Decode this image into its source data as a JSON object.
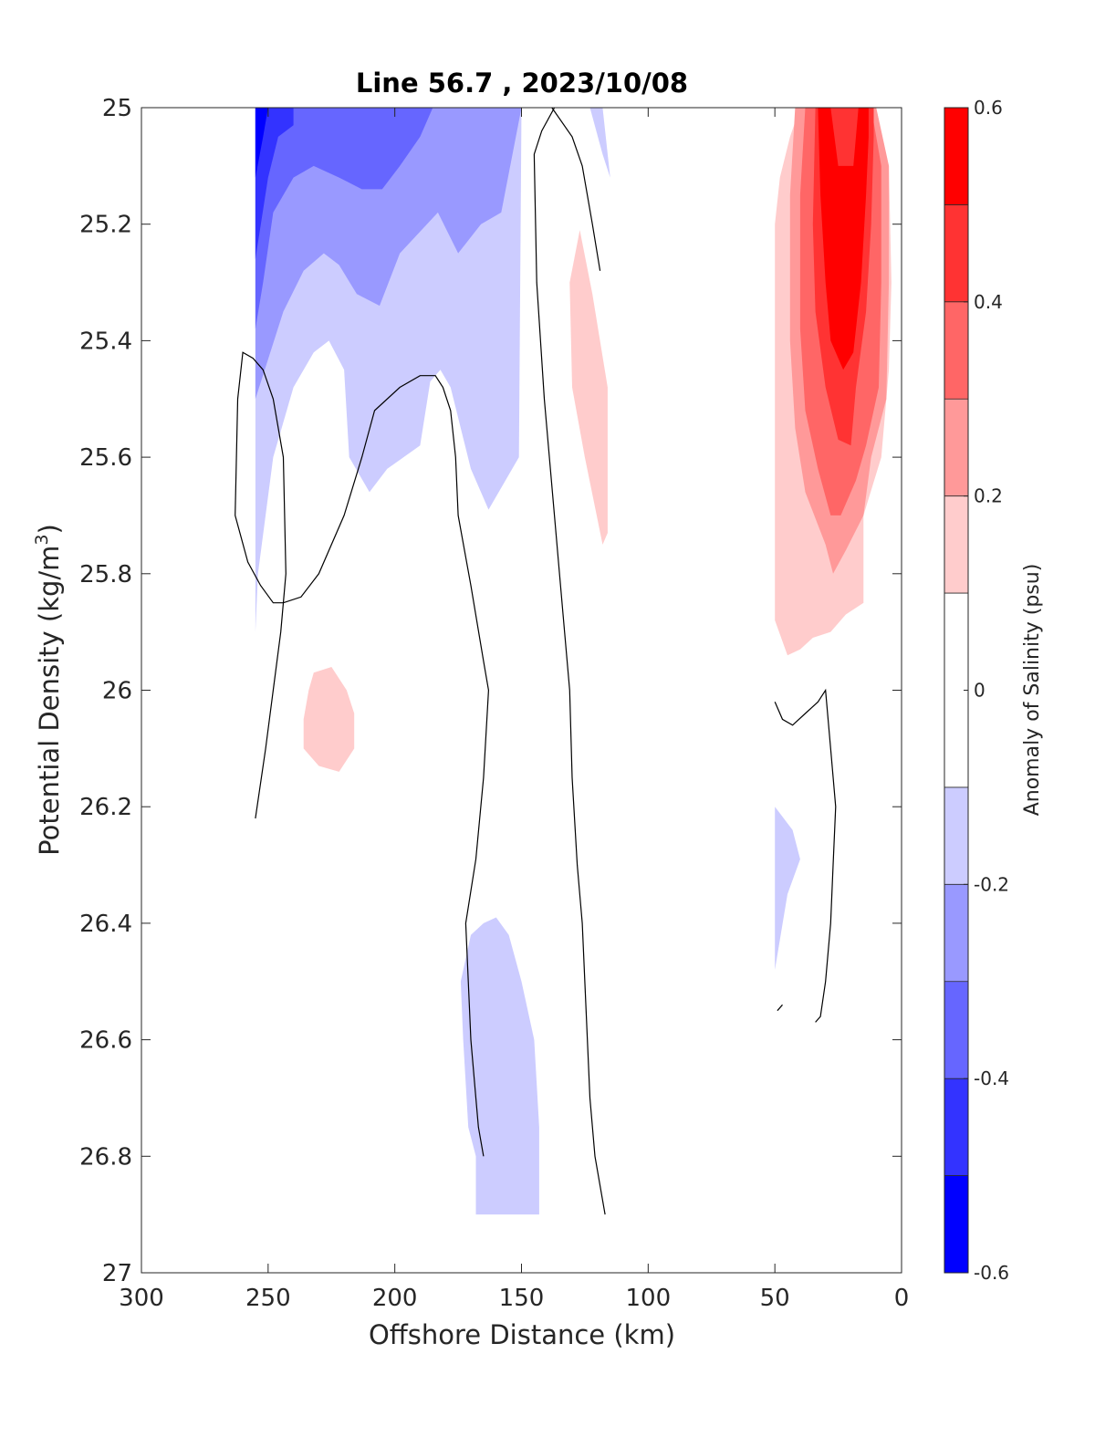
{
  "chart_data": {
    "type": "heatmap",
    "subtype": "filled-contour",
    "title": "Line 56.7 , 2023/10/08",
    "xlabel": "Offshore Distance (km)",
    "ylabel_main": "Potential Density (kg/m",
    "ylabel_sup": "3",
    "ylabel_tail": ")",
    "xlim": [
      300,
      0
    ],
    "ylim": [
      25,
      27
    ],
    "y_reversed": true,
    "x_reversed": true,
    "xticks": [
      300,
      250,
      200,
      150,
      100,
      50,
      0
    ],
    "yticks": [
      25,
      25.2,
      25.4,
      25.6,
      25.8,
      26,
      26.2,
      26.4,
      26.6,
      26.8,
      27
    ],
    "xtick_labels": [
      "300",
      "250",
      "200",
      "150",
      "100",
      "50",
      "0"
    ],
    "ytick_labels": [
      "25",
      "25.2",
      "25.4",
      "25.6",
      "25.8",
      "26",
      "26.2",
      "26.4",
      "26.6",
      "26.8",
      "27"
    ],
    "grid": false,
    "colorbar": {
      "label": "Anomaly of Salinity (psu)",
      "range": [
        -0.6,
        0.6
      ],
      "levels": [
        -0.6,
        -0.5,
        -0.4,
        -0.3,
        -0.2,
        -0.1,
        0.1,
        0.2,
        0.3,
        0.4,
        0.5,
        0.6
      ],
      "colors": [
        "#0000ff",
        "#3333ff",
        "#6666ff",
        "#9999ff",
        "#ccccff",
        "#ffffff",
        "#ffcccc",
        "#ff9999",
        "#ff6666",
        "#ff3333",
        "#ff0000"
      ],
      "tick_values": [
        -0.6,
        -0.4,
        -0.2,
        0,
        0.2,
        0.4,
        0.6
      ],
      "tick_labels": [
        "-0.6",
        "-0.4",
        "-0.2",
        "0",
        "0.2",
        "0.4",
        "0.6"
      ]
    },
    "regions": [
      {
        "name": "neg-0.1-offshore-top",
        "level": -0.1,
        "color": "#ccccff",
        "points": [
          [
            255,
            25
          ],
          [
            255,
            25.9
          ],
          [
            254,
            25.8
          ],
          [
            248,
            25.6
          ],
          [
            240,
            25.48
          ],
          [
            232,
            25.42
          ],
          [
            226,
            25.4
          ],
          [
            220,
            25.45
          ],
          [
            218,
            25.6
          ],
          [
            210,
            25.66
          ],
          [
            203,
            25.62
          ],
          [
            190,
            25.58
          ],
          [
            186,
            25.47
          ],
          [
            182,
            25.45
          ],
          [
            178,
            25.48
          ],
          [
            170,
            25.62
          ],
          [
            163,
            25.69
          ],
          [
            151,
            25.6
          ],
          [
            150,
            25
          ]
        ]
      },
      {
        "name": "neg-0.2-offshore-top",
        "level": -0.2,
        "color": "#9999ff",
        "points": [
          [
            255,
            25
          ],
          [
            255,
            25.5
          ],
          [
            244,
            25.35
          ],
          [
            236,
            25.28
          ],
          [
            228,
            25.25
          ],
          [
            222,
            25.27
          ],
          [
            215,
            25.32
          ],
          [
            206,
            25.34
          ],
          [
            198,
            25.25
          ],
          [
            183,
            25.18
          ],
          [
            175,
            25.25
          ],
          [
            166,
            25.2
          ],
          [
            158,
            25.18
          ],
          [
            150,
            25
          ]
        ]
      },
      {
        "name": "neg-0.3-offshore-top",
        "level": -0.3,
        "color": "#6666ff",
        "points": [
          [
            255,
            25
          ],
          [
            255,
            25.38
          ],
          [
            252,
            25.3
          ],
          [
            248,
            25.18
          ],
          [
            240,
            25.12
          ],
          [
            232,
            25.1
          ],
          [
            222,
            25.12
          ],
          [
            213,
            25.14
          ],
          [
            205,
            25.14
          ],
          [
            198,
            25.1
          ],
          [
            190,
            25.05
          ],
          [
            185,
            25
          ]
        ]
      },
      {
        "name": "neg-0.4-offshore-top",
        "level": -0.4,
        "color": "#3333ff",
        "points": [
          [
            255,
            25
          ],
          [
            255,
            25.26
          ],
          [
            250,
            25.12
          ],
          [
            246,
            25.05
          ],
          [
            240,
            25.03
          ],
          [
            240,
            25
          ],
          [
            255,
            25
          ]
        ]
      },
      {
        "name": "neg-0.5-offshore-top",
        "level": -0.5,
        "color": "#0000ff",
        "points": [
          [
            255,
            25
          ],
          [
            255,
            25.12
          ],
          [
            252,
            25.05
          ],
          [
            250,
            25
          ]
        ]
      },
      {
        "name": "neg-0.1-near-125",
        "level": -0.1,
        "color": "#ccccff",
        "points": [
          [
            123,
            25
          ],
          [
            118,
            25
          ],
          [
            115,
            25.12
          ],
          [
            118,
            25.08
          ]
        ]
      },
      {
        "name": "pos-0.1-near-130",
        "level": 0.1,
        "color": "#ffcccc",
        "points": [
          [
            127,
            25.21
          ],
          [
            131,
            25.3
          ],
          [
            130,
            25.48
          ],
          [
            125,
            25.6
          ],
          [
            118,
            25.75
          ],
          [
            116,
            25.73
          ],
          [
            116,
            25.48
          ],
          [
            122,
            25.32
          ]
        ]
      },
      {
        "name": "pos-0.1-blob-225",
        "level": 0.1,
        "color": "#ffcccc",
        "points": [
          [
            232,
            25.97
          ],
          [
            225,
            25.96
          ],
          [
            219,
            26
          ],
          [
            216,
            26.04
          ],
          [
            216,
            26.1
          ],
          [
            222,
            26.14
          ],
          [
            230,
            26.13
          ],
          [
            236,
            26.1
          ],
          [
            236,
            26.05
          ],
          [
            234,
            26.0
          ]
        ]
      },
      {
        "name": "neg-0.1-deep-150",
        "level": -0.1,
        "color": "#ccccff",
        "points": [
          [
            165,
            26.4
          ],
          [
            170,
            26.42
          ],
          [
            174,
            26.5
          ],
          [
            173,
            26.6
          ],
          [
            171,
            26.75
          ],
          [
            168,
            26.8
          ],
          [
            168,
            26.9
          ],
          [
            143,
            26.9
          ],
          [
            143,
            26.75
          ],
          [
            145,
            26.6
          ],
          [
            150,
            26.5
          ],
          [
            155,
            26.42
          ],
          [
            160,
            26.39
          ]
        ]
      },
      {
        "name": "neg-0.1-near-45",
        "level": -0.1,
        "color": "#ccccff",
        "points": [
          [
            50,
            26.2
          ],
          [
            50,
            26.48
          ],
          [
            45,
            26.35
          ],
          [
            40,
            26.29
          ],
          [
            43,
            26.24
          ]
        ]
      },
      {
        "name": "pos-0.1-coastal",
        "level": 0.1,
        "color": "#ffcccc",
        "points": [
          [
            50,
            25.2
          ],
          [
            50,
            25.88
          ],
          [
            45,
            25.94
          ],
          [
            40,
            25.93
          ],
          [
            35,
            25.91
          ],
          [
            28,
            25.9
          ],
          [
            22,
            25.87
          ],
          [
            15,
            25.85
          ],
          [
            15,
            25.7
          ],
          [
            8,
            25.6
          ],
          [
            5,
            25.45
          ],
          [
            4,
            25.3
          ],
          [
            5,
            25.1
          ],
          [
            10,
            25
          ],
          [
            40,
            25
          ],
          [
            44,
            25.05
          ],
          [
            48,
            25.12
          ]
        ]
      },
      {
        "name": "pos-0.2-coastal",
        "level": 0.2,
        "color": "#ff9999",
        "points": [
          [
            42,
            25
          ],
          [
            44,
            25.15
          ],
          [
            44,
            25.4
          ],
          [
            42,
            25.55
          ],
          [
            38,
            25.66
          ],
          [
            30,
            25.75
          ],
          [
            27,
            25.8
          ],
          [
            22,
            25.76
          ],
          [
            15,
            25.7
          ],
          [
            12,
            25.6
          ],
          [
            6,
            25.5
          ],
          [
            5,
            25.3
          ],
          [
            5,
            25.1
          ],
          [
            10,
            25
          ]
        ]
      },
      {
        "name": "pos-0.3-coastal",
        "level": 0.3,
        "color": "#ff6666",
        "points": [
          [
            38,
            25
          ],
          [
            40,
            25.15
          ],
          [
            40,
            25.38
          ],
          [
            38,
            25.52
          ],
          [
            33,
            25.62
          ],
          [
            28,
            25.7
          ],
          [
            24,
            25.7
          ],
          [
            18,
            25.64
          ],
          [
            14,
            25.58
          ],
          [
            9,
            25.48
          ],
          [
            8,
            25.3
          ],
          [
            8,
            25.1
          ],
          [
            12,
            25
          ]
        ]
      },
      {
        "name": "pos-0.4-coastal",
        "level": 0.4,
        "color": "#ff3333",
        "points": [
          [
            34,
            25
          ],
          [
            35,
            25.2
          ],
          [
            34,
            25.35
          ],
          [
            30,
            25.48
          ],
          [
            25,
            25.57
          ],
          [
            20,
            25.58
          ],
          [
            18,
            25.48
          ],
          [
            14,
            25.35
          ],
          [
            12,
            25.2
          ],
          [
            11,
            25.05
          ],
          [
            11,
            25
          ]
        ]
      },
      {
        "name": "pos-0.5-coastal",
        "level": 0.5,
        "color": "#ff0000",
        "points": [
          [
            33,
            25
          ],
          [
            32,
            25.15
          ],
          [
            30,
            25.3
          ],
          [
            28,
            25.4
          ],
          [
            23,
            25.45
          ],
          [
            19,
            25.42
          ],
          [
            16,
            25.3
          ],
          [
            14,
            25.15
          ],
          [
            13,
            25.05
          ],
          [
            13,
            25
          ],
          [
            17,
            25
          ],
          [
            19,
            25.1
          ],
          [
            25,
            25.1
          ],
          [
            28,
            25
          ]
        ]
      }
    ],
    "contours": [
      {
        "name": "contour-loop-offshore",
        "level": 0,
        "points": [
          [
            255,
            26.22
          ],
          [
            251,
            26.1
          ],
          [
            248,
            26
          ],
          [
            245,
            25.9
          ],
          [
            243,
            25.8
          ],
          [
            244,
            25.6
          ],
          [
            248,
            25.5
          ],
          [
            252,
            25.45
          ],
          [
            256,
            25.43
          ],
          [
            260,
            25.42
          ],
          [
            262,
            25.5
          ],
          [
            263,
            25.7
          ],
          [
            258,
            25.78
          ],
          [
            253,
            25.82
          ],
          [
            248,
            25.85
          ],
          [
            244,
            25.85
          ],
          [
            237,
            25.84
          ],
          [
            230,
            25.8
          ],
          [
            220,
            25.7
          ],
          [
            213,
            25.6
          ],
          [
            208,
            25.52
          ],
          [
            198,
            25.48
          ],
          [
            190,
            25.46
          ],
          [
            184,
            25.46
          ],
          [
            181,
            25.48
          ],
          [
            178,
            25.52
          ],
          [
            176,
            25.6
          ],
          [
            175,
            25.7
          ],
          [
            170,
            25.82
          ],
          [
            165,
            25.95
          ],
          [
            163,
            26
          ],
          [
            165,
            26.15
          ],
          [
            168,
            26.29
          ],
          [
            172,
            26.4
          ],
          [
            171,
            26.5
          ],
          [
            170,
            26.6
          ],
          [
            168,
            26.7
          ],
          [
            167,
            26.75
          ],
          [
            165,
            26.8
          ]
        ]
      },
      {
        "name": "contour-150-line",
        "level": 0,
        "points": [
          [
            137,
            25
          ],
          [
            142,
            25.04
          ],
          [
            145,
            25.08
          ],
          [
            144,
            25.3
          ],
          [
            141,
            25.5
          ],
          [
            137,
            25.7
          ],
          [
            133,
            25.9
          ],
          [
            131,
            26.0
          ],
          [
            130,
            26.15
          ],
          [
            128,
            26.3
          ],
          [
            126,
            26.4
          ],
          [
            125,
            26.5
          ],
          [
            124,
            26.6
          ],
          [
            123,
            26.7
          ],
          [
            121,
            26.8
          ],
          [
            117,
            26.9
          ]
        ]
      },
      {
        "name": "contour-near-125",
        "level": 0,
        "points": [
          [
            138,
            25
          ],
          [
            130,
            25.05
          ],
          [
            126,
            25.1
          ],
          [
            122,
            25.2
          ],
          [
            119,
            25.28
          ]
        ]
      },
      {
        "name": "contour-coastal-dip",
        "level": 0,
        "points": [
          [
            50,
            26.02
          ],
          [
            47,
            26.05
          ],
          [
            43,
            26.06
          ],
          [
            38,
            26.04
          ],
          [
            33,
            26.02
          ],
          [
            30,
            26.0
          ],
          [
            28,
            26.1
          ],
          [
            26,
            26.2
          ],
          [
            27,
            26.3
          ],
          [
            28,
            26.4
          ],
          [
            30,
            26.5
          ],
          [
            32,
            26.56
          ],
          [
            34,
            26.57
          ]
        ]
      },
      {
        "name": "contour-coastal-stub",
        "level": 0,
        "points": [
          [
            49,
            26.55
          ],
          [
            47,
            26.54
          ]
        ]
      }
    ]
  }
}
